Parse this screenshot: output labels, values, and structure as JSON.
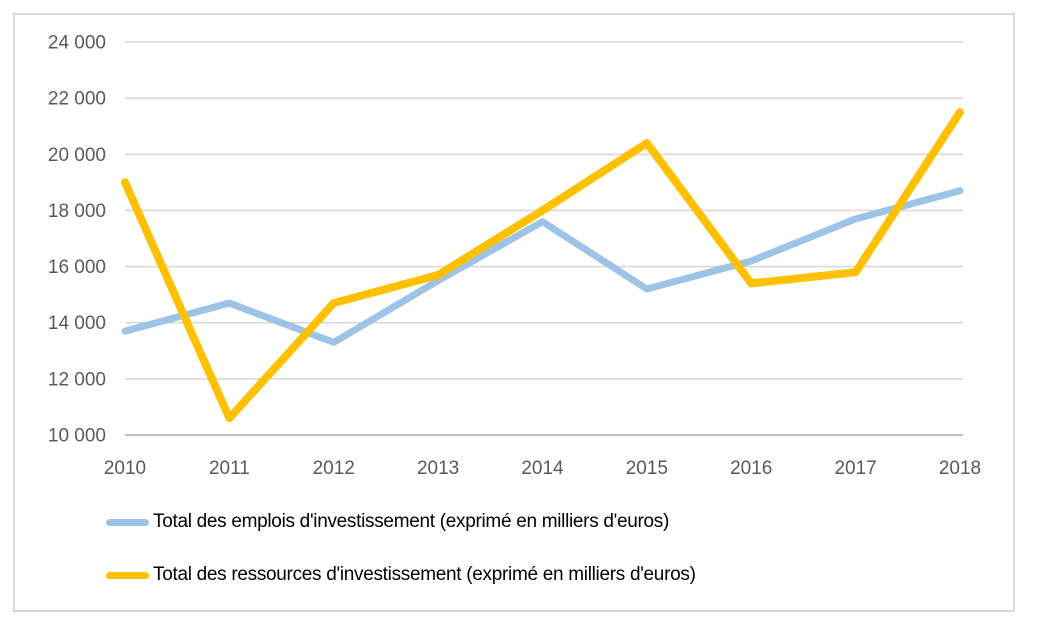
{
  "chart": {
    "background_color": "#FFFFFF",
    "border_color": "#D9D9D9",
    "grid_color": "#D9D9D9",
    "axis_line_color": "#BFBFBF",
    "tick_label_color": "#595959",
    "legend_text_color": "#000000"
  },
  "chart_data": {
    "type": "line",
    "title": "",
    "xlabel": "",
    "ylabel": "",
    "x": [
      2010,
      2011,
      2012,
      2013,
      2014,
      2015,
      2016,
      2017,
      2018
    ],
    "x_tick_labels": [
      "2010",
      "2011",
      "2012",
      "2013",
      "2014",
      "2015",
      "2016",
      "2017",
      "2018"
    ],
    "series": [
      {
        "name": "Total des emplois d'investissement (exprimé en milliers d'euros)",
        "color": "#9DC3E6",
        "stroke_width": 7,
        "values": [
          13700,
          14700,
          13300,
          15500,
          17600,
          15200,
          16200,
          17700,
          18700
        ]
      },
      {
        "name": "Total des ressources d'investissement (exprimé en milliers d'euros)",
        "color": "#FFC000",
        "stroke_width": 8,
        "values": [
          19000,
          10600,
          14700,
          15700,
          18000,
          20400,
          15400,
          15800,
          21500
        ]
      }
    ],
    "ylim": [
      10000,
      24000
    ],
    "ytick_step": 2000,
    "ytick_labels": [
      "10 000",
      "12 000",
      "14 000",
      "16 000",
      "18 000",
      "20 000",
      "22 000",
      "24 000"
    ],
    "grid": true,
    "legend_position": "bottom-left"
  }
}
